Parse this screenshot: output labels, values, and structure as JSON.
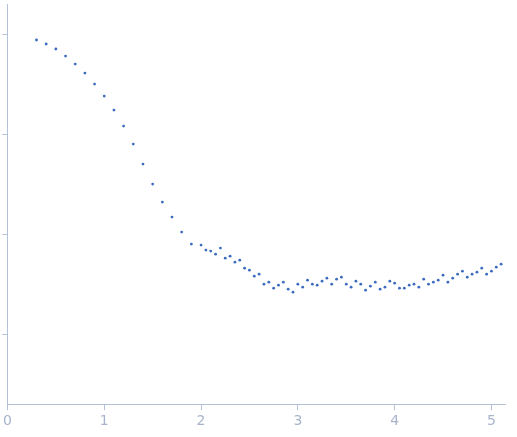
{
  "chart_data": {
    "type": "scatter",
    "tick_labels": "x",
    "grid": false,
    "color": "#3a6bbf",
    "marker": "circle",
    "xlim": [
      0,
      5.14
    ],
    "xticks": [
      0,
      1,
      2,
      3,
      4,
      5
    ],
    "ylim": [
      0.3,
      4.3
    ],
    "yticks": [
      1,
      2,
      3,
      4
    ],
    "x": [
      0.3,
      0.4,
      0.5,
      0.6,
      0.7,
      0.8,
      0.9,
      1.0,
      1.1,
      1.2,
      1.3,
      1.4,
      1.5,
      1.6,
      1.7,
      1.8,
      1.9,
      2.0,
      2.05,
      2.1,
      2.15,
      2.2,
      2.25,
      2.3,
      2.35,
      2.4,
      2.45,
      2.5,
      2.55,
      2.6,
      2.65,
      2.7,
      2.75,
      2.8,
      2.85,
      2.9,
      2.95,
      3.0,
      3.05,
      3.1,
      3.15,
      3.2,
      3.25,
      3.3,
      3.35,
      3.4,
      3.45,
      3.5,
      3.55,
      3.6,
      3.65,
      3.7,
      3.75,
      3.8,
      3.85,
      3.9,
      3.95,
      4.0,
      4.05,
      4.1,
      4.15,
      4.2,
      4.25,
      4.3,
      4.35,
      4.4,
      4.45,
      4.5,
      4.55,
      4.6,
      4.65,
      4.7,
      4.75,
      4.8,
      4.85,
      4.9,
      4.95,
      5.0,
      5.05,
      5.1
    ],
    "values": [
      3.94,
      3.9,
      3.85,
      3.78,
      3.7,
      3.61,
      3.5,
      3.38,
      3.24,
      3.08,
      2.9,
      2.7,
      2.5,
      2.32,
      2.17,
      2.02,
      1.9,
      1.89,
      1.84,
      1.83,
      1.8,
      1.86,
      1.76,
      1.78,
      1.72,
      1.74,
      1.66,
      1.64,
      1.58,
      1.6,
      1.5,
      1.52,
      1.46,
      1.49,
      1.52,
      1.45,
      1.42,
      1.5,
      1.47,
      1.54,
      1.5,
      1.49,
      1.53,
      1.56,
      1.5,
      1.55,
      1.57,
      1.5,
      1.47,
      1.53,
      1.5,
      1.44,
      1.48,
      1.52,
      1.45,
      1.47,
      1.53,
      1.51,
      1.46,
      1.46,
      1.49,
      1.5,
      1.47,
      1.55,
      1.5,
      1.52,
      1.54,
      1.59,
      1.52,
      1.56,
      1.6,
      1.63,
      1.57,
      1.6,
      1.62,
      1.66,
      1.6,
      1.63,
      1.67,
      1.7
    ]
  }
}
